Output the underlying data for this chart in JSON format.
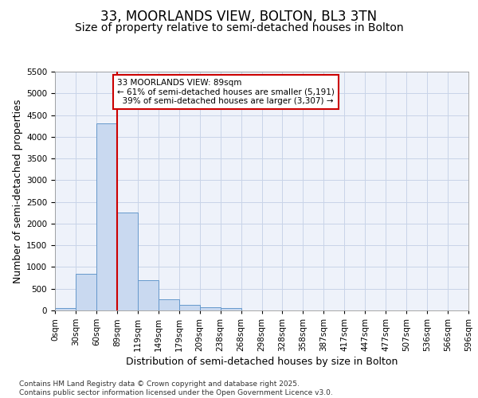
{
  "title": "33, MOORLANDS VIEW, BOLTON, BL3 3TN",
  "subtitle": "Size of property relative to semi-detached houses in Bolton",
  "xlabel": "Distribution of semi-detached houses by size in Bolton",
  "ylabel": "Number of semi-detached properties",
  "bar_values": [
    50,
    850,
    4300,
    2250,
    700,
    250,
    120,
    70,
    60,
    0,
    0,
    0,
    0,
    0,
    0,
    0,
    0,
    0,
    0,
    0
  ],
  "bin_labels": [
    "0sqm",
    "30sqm",
    "60sqm",
    "89sqm",
    "119sqm",
    "149sqm",
    "179sqm",
    "209sqm",
    "238sqm",
    "268sqm",
    "298sqm",
    "328sqm",
    "358sqm",
    "387sqm",
    "417sqm",
    "447sqm",
    "477sqm",
    "507sqm",
    "536sqm",
    "566sqm",
    "596sqm"
  ],
  "bar_color": "#c9d9f0",
  "bar_edge_color": "#6699cc",
  "grid_color": "#c8d4e8",
  "background_color": "#eef2fa",
  "red_line_x": 3,
  "red_line_color": "#cc0000",
  "annotation_text": "33 MOORLANDS VIEW: 89sqm\n← 61% of semi-detached houses are smaller (5,191)\n  39% of semi-detached houses are larger (3,307) →",
  "annotation_box_color": "#ffffff",
  "annotation_border_color": "#cc0000",
  "ylim": [
    0,
    5500
  ],
  "yticks": [
    0,
    500,
    1000,
    1500,
    2000,
    2500,
    3000,
    3500,
    4000,
    4500,
    5000,
    5500
  ],
  "footer_text": "Contains HM Land Registry data © Crown copyright and database right 2025.\nContains public sector information licensed under the Open Government Licence v3.0.",
  "title_fontsize": 12,
  "subtitle_fontsize": 10,
  "axis_label_fontsize": 9,
  "tick_fontsize": 7.5,
  "annotation_fontsize": 7.5,
  "footer_fontsize": 6.5
}
